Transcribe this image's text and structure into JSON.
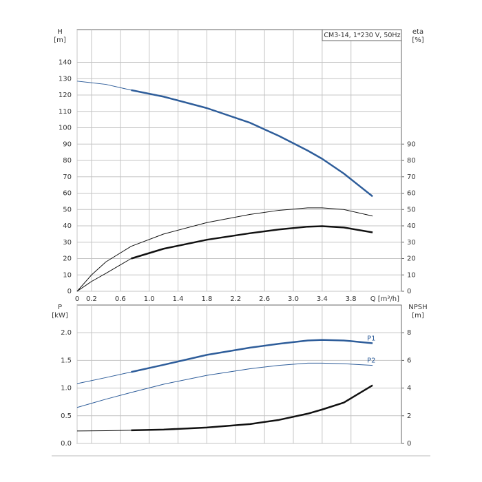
{
  "chart_data": [
    {
      "type": "line",
      "title": "CM3-14, 1*230 V, 50Hz",
      "ylabel": "H",
      "yunit": "[m]",
      "y2label": "eta",
      "y2unit": "[%]",
      "xlabel": "Q [m³/h]",
      "xlim": [
        0,
        4.5
      ],
      "xticks": [
        0,
        0.2,
        0.6,
        {
          "value": 1,
          "label": "1.0"
        },
        1.4,
        1.8,
        2.2,
        2.6,
        {
          "value": 3,
          "label": "3.0"
        },
        3.4,
        3.8
      ],
      "xtick_labels": true,
      "ylim": [
        0,
        160
      ],
      "yticks": [
        0,
        10,
        20,
        30,
        40,
        50,
        60,
        70,
        80,
        90,
        100,
        110,
        120,
        130,
        140
      ],
      "y2lim": [
        0,
        160
      ],
      "y2ticks": [
        0,
        10,
        20,
        30,
        40,
        50,
        60,
        70,
        80,
        90
      ],
      "grid": true,
      "series": [
        {
          "color": "#2e5d9a",
          "style": "thin",
          "axis": "y",
          "x": [
            0,
            0.4,
            0.75
          ],
          "values": [
            128.5,
            126.5,
            123
          ]
        },
        {
          "color": "#2e5d9a",
          "style": "thick",
          "axis": "y",
          "x": [
            0.75,
            1.2,
            1.8,
            2.4,
            2.8,
            3.2,
            3.4,
            3.7,
            4.1
          ],
          "values": [
            123,
            119,
            112,
            103,
            95,
            86,
            81,
            72,
            58
          ]
        },
        {
          "color": "#111111",
          "style": "thin",
          "axis": "y2",
          "x": [
            0,
            0.2,
            0.4,
            0.75,
            1.2,
            1.8,
            2.4,
            2.8,
            3.2,
            3.4,
            3.7,
            4.1
          ],
          "values": [
            0,
            10,
            18,
            27.5,
            35,
            42,
            47,
            49.5,
            51,
            51,
            50,
            46
          ]
        },
        {
          "color": "#111111",
          "style": "thin",
          "axis": "y2",
          "x": [
            0,
            0.2,
            0.4,
            0.75
          ],
          "values": [
            0,
            6,
            11,
            20
          ]
        },
        {
          "color": "#111111",
          "style": "thick",
          "axis": "y2",
          "x": [
            0.75,
            1.2,
            1.8,
            2.4,
            2.8,
            3.2,
            3.4,
            3.7,
            4.1
          ],
          "values": [
            20,
            26,
            31.5,
            35.5,
            37.8,
            39.5,
            39.8,
            39,
            36
          ]
        }
      ]
    },
    {
      "type": "line",
      "ylabel": "P",
      "yunit": "[kW]",
      "y2label": "NPSH",
      "y2unit": "[m]",
      "xlim": [
        0,
        4.5
      ],
      "xticks": [
        0,
        0.2,
        0.6,
        1,
        1.4,
        1.8,
        2.2,
        2.6,
        3,
        3.4,
        3.8
      ],
      "xtick_labels": false,
      "ylim": [
        0,
        2.5
      ],
      "yticks": [
        {
          "value": 0,
          "label": "0.0"
        },
        0.5,
        {
          "value": 1,
          "label": "1.0"
        },
        1.5,
        {
          "value": 2,
          "label": "2.0"
        }
      ],
      "y2lim": [
        0,
        10
      ],
      "y2ticks": [
        0,
        2,
        4,
        6,
        8
      ],
      "grid": true,
      "series": [
        {
          "color": "#2e5d9a",
          "style": "thin",
          "axis": "y",
          "x": [
            0,
            0.4,
            0.75
          ],
          "values": [
            1.08,
            1.19,
            1.29
          ]
        },
        {
          "name": "P1",
          "color": "#2e5d9a",
          "style": "thick",
          "axis": "y",
          "x": [
            0.75,
            1.2,
            1.8,
            2.4,
            2.8,
            3.2,
            3.4,
            3.7,
            4.1
          ],
          "values": [
            1.29,
            1.42,
            1.6,
            1.73,
            1.8,
            1.86,
            1.87,
            1.86,
            1.81
          ]
        },
        {
          "name": "P2",
          "color": "#2e5d9a",
          "style": "thin",
          "axis": "y",
          "x": [
            0,
            0.4,
            0.75,
            1.2,
            1.8,
            2.4,
            2.8,
            3.2,
            3.4,
            3.7,
            4.1
          ],
          "values": [
            0.65,
            0.8,
            0.92,
            1.07,
            1.23,
            1.35,
            1.41,
            1.45,
            1.45,
            1.44,
            1.41
          ]
        },
        {
          "color": "#111111",
          "style": "thin",
          "axis": "y2",
          "x": [
            0,
            0.4,
            0.75
          ],
          "values": [
            0.9,
            0.92,
            0.95
          ]
        },
        {
          "color": "#111111",
          "style": "thick",
          "axis": "y2",
          "x": [
            0.75,
            1.2,
            1.8,
            2.4,
            2.8,
            3.2,
            3.4,
            3.7,
            4.1
          ],
          "values": [
            0.95,
            1.0,
            1.15,
            1.4,
            1.7,
            2.15,
            2.45,
            2.95,
            4.2
          ]
        }
      ]
    }
  ]
}
